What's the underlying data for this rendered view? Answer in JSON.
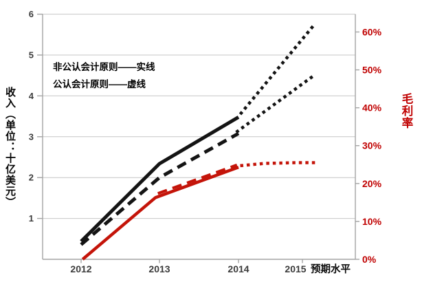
{
  "page": {
    "background": "#ffffff"
  },
  "chart_data": {
    "type": "line",
    "title": "",
    "x_tick_labels": [
      "2012",
      "2013",
      "2014",
      "2015"
    ],
    "x_annotation": "预期水平",
    "left_axis": {
      "title": "收入（单位：十亿美元）",
      "min": 0,
      "max_at_top": 6,
      "tick_values": [
        1,
        2,
        3,
        4,
        5,
        6
      ],
      "tick_labels": [
        "1",
        "2",
        "3",
        "4",
        "5",
        "6"
      ],
      "label_color": "#3b3b3b"
    },
    "right_axis": {
      "title": "毛利率",
      "min": 0,
      "max_at_top": 64.7,
      "tick_values": [
        0,
        10,
        20,
        30,
        40,
        50,
        60
      ],
      "tick_labels": [
        "0%",
        "10%",
        "20%",
        "30%",
        "40%",
        "50%",
        "60%"
      ],
      "label_color": "#c00000"
    },
    "legend": {
      "line1": "非公认会计原则——实线",
      "line2": "公认会计原则——虚线"
    },
    "grid": {
      "horizontal": true,
      "vertical": false,
      "gridline_color": "#c6c6c6",
      "frame_color": "#a3a3a3"
    },
    "series": [
      {
        "key": "revenue-nongaap-actual",
        "name": "非公认会计原则收入（实际）",
        "axis": "left",
        "style": "solid",
        "color": "#141414",
        "width": 5,
        "points": [
          [
            0,
            0.44
          ],
          [
            1,
            2.34
          ],
          [
            2,
            3.48
          ]
        ]
      },
      {
        "key": "revenue-gaap-actual",
        "name": "公认会计原则收入（实际）",
        "axis": "left",
        "style": "dashed",
        "color": "#141414",
        "width": 5,
        "points": [
          [
            0,
            0.36
          ],
          [
            1,
            2.0
          ],
          [
            2,
            3.08
          ]
        ]
      },
      {
        "key": "revenue-nongaap-forecast",
        "name": "非公认会计原则收入（预期）",
        "axis": "left",
        "style": "dotted",
        "color": "#141414",
        "width": 4.5,
        "points": [
          [
            2.03,
            3.55
          ],
          [
            3.55,
            5.76
          ]
        ]
      },
      {
        "key": "revenue-gaap-forecast",
        "name": "公认会计原则收入（预期）",
        "axis": "left",
        "style": "dotted",
        "color": "#141414",
        "width": 4.5,
        "points": [
          [
            1.97,
            3.11
          ],
          [
            3.51,
            4.49
          ]
        ]
      },
      {
        "key": "margin-nongaap-actual",
        "name": "非公认会计原则毛利率（实际）",
        "axis": "right",
        "style": "solid",
        "color": "#c41409",
        "width": 4.5,
        "points": [
          [
            0.02,
            0
          ],
          [
            0.95,
            16.3
          ],
          [
            2,
            24.3
          ]
        ]
      },
      {
        "key": "margin-gaap-actual",
        "name": "公认会计原则毛利率（实际）",
        "axis": "right",
        "style": "dashed",
        "color": "#c41409",
        "width": 4,
        "points": [
          [
            0.98,
            17.4
          ],
          [
            1.98,
            24.9
          ]
        ]
      },
      {
        "key": "margin-forecast",
        "name": "毛利率（预期）",
        "axis": "right",
        "style": "dotted",
        "color": "#c41409",
        "width": 4.5,
        "points": [
          [
            2.03,
            24.7
          ],
          [
            2.45,
            25.3
          ],
          [
            3.0,
            25.5
          ],
          [
            3.63,
            25.5
          ]
        ]
      }
    ]
  }
}
